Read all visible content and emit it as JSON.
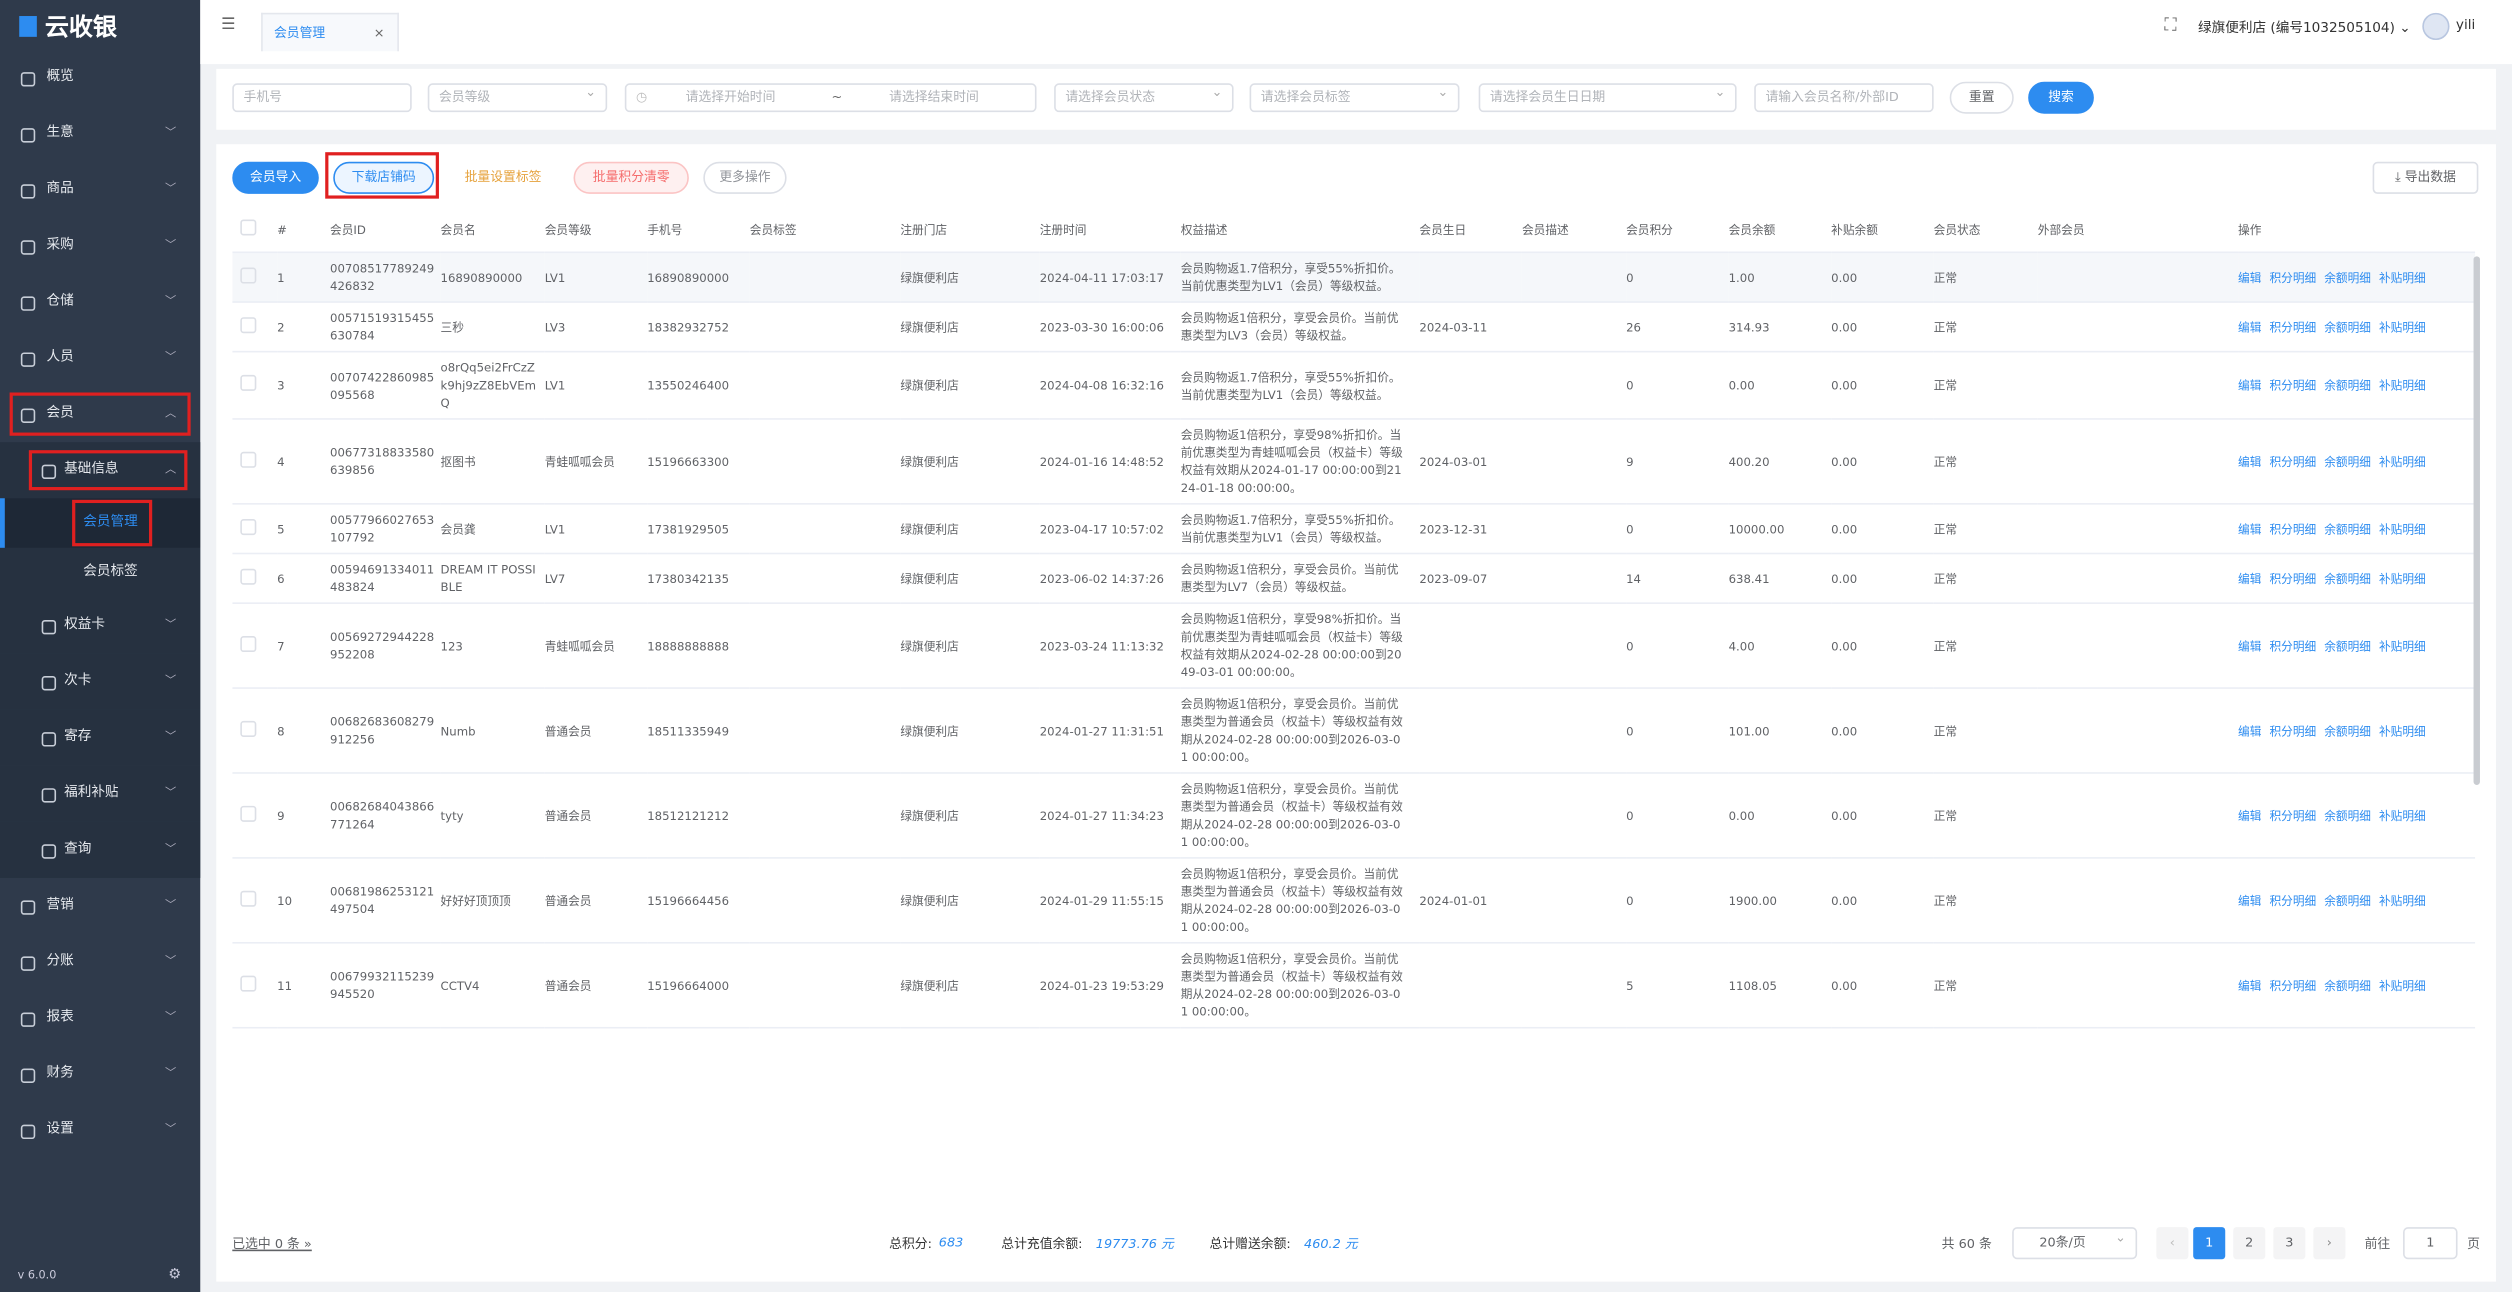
{
  "header": {
    "logo": "云收银",
    "tab": "会员管理",
    "store": "绿旗便利店 (编号1032505104)",
    "user": "yili"
  },
  "sidebar": {
    "items": [
      {
        "label": "概览"
      },
      {
        "label": "生意",
        "expanded": false
      },
      {
        "label": "商品",
        "expanded": false
      },
      {
        "label": "采购",
        "expanded": false
      },
      {
        "label": "仓储",
        "expanded": false
      },
      {
        "label": "人员",
        "expanded": false
      },
      {
        "label": "会员",
        "expanded": true,
        "highlighted": true,
        "children": [
          {
            "label": "基础信息",
            "expanded": true,
            "highlighted": true,
            "children": [
              {
                "label": "会员管理",
                "active": true,
                "highlighted": true
              },
              {
                "label": "会员标签"
              }
            ]
          },
          {
            "label": "权益卡",
            "expanded": false
          },
          {
            "label": "次卡",
            "expanded": false
          },
          {
            "label": "寄存",
            "expanded": false
          },
          {
            "label": "福利补贴",
            "expanded": false
          },
          {
            "label": "查询",
            "expanded": false
          }
        ]
      },
      {
        "label": "营销",
        "expanded": false
      },
      {
        "label": "分账",
        "expanded": false
      },
      {
        "label": "报表",
        "expanded": false
      },
      {
        "label": "财务",
        "expanded": false
      },
      {
        "label": "设置",
        "expanded": false
      }
    ],
    "version": "v 6.0.0"
  },
  "filters": {
    "phone": "手机号",
    "level": "会员等级",
    "start": "请选择开始时间",
    "sep": "~",
    "end": "请选择结束时间",
    "status": "请选择会员状态",
    "tag": "请选择会员标签",
    "birthday": "请选择会员生日日期",
    "name": "请输入会员名称/外部ID",
    "reset": "重置",
    "search": "搜索"
  },
  "toolbar": {
    "import": "会员导入",
    "download": "下载店铺码",
    "set_tag": "批量设置标签",
    "clear_points": "批量积分清零",
    "more": "更多操作",
    "export": "导出数据"
  },
  "table": {
    "columns": [
      "#",
      "会员ID",
      "会员名",
      "会员等级",
      "手机号",
      "会员标签",
      "注册门店",
      "注册时间",
      "权益描述",
      "会员生日",
      "会员描述",
      "会员积分",
      "会员余额",
      "补贴余额",
      "会员状态",
      "外部会员",
      "操作"
    ],
    "actions": [
      "编辑",
      "积分明细",
      "余额明细",
      "补贴明细"
    ],
    "rows": [
      [
        "1",
        "00708517789249426832",
        "16890890000",
        "LV1",
        "16890890000",
        null,
        "绿旗便利店",
        "2024-04-11 17:03:17",
        "会员购物返1.7倍积分，享受55%折扣价。当前优惠类型为LV1（会员）等级权益。",
        null,
        null,
        "0",
        "1.00",
        "0.00",
        "正常",
        null
      ],
      [
        "2",
        "00571519315455630784",
        "三秒",
        "LV3",
        "18382932752",
        null,
        "绿旗便利店",
        "2023-03-30 16:00:06",
        "会员购物返1倍积分，享受会员价。当前优惠类型为LV3（会员）等级权益。",
        "2024-03-11",
        null,
        "26",
        "314.93",
        "0.00",
        "正常",
        null
      ],
      [
        "3",
        "00707422860985095568",
        "o8rQq5ei2FrCzZk9hj9zZ8EbVEmQ",
        "LV1",
        "13550246400",
        null,
        "绿旗便利店",
        "2024-04-08 16:32:16",
        "会员购物返1.7倍积分，享受55%折扣价。当前优惠类型为LV1（会员）等级权益。",
        null,
        null,
        "0",
        "0.00",
        "0.00",
        "正常",
        null
      ],
      [
        "4",
        "00677318833580639856",
        "抠图书",
        "青蛙呱呱会员",
        "15196663300",
        null,
        "绿旗便利店",
        "2024-01-16 14:48:52",
        "会员购物返1倍积分，享受98%折扣价。当前优惠类型为青蛙呱呱会员（权益卡）等级权益有效期从2024-01-17 00:00:00到2124-01-18 00:00:00。",
        "2024-03-01",
        null,
        "9",
        "400.20",
        "0.00",
        "正常",
        null
      ],
      [
        "5",
        "00577966027653107792",
        "会员龚",
        "LV1",
        "17381929505",
        null,
        "绿旗便利店",
        "2023-04-17 10:57:02",
        "会员购物返1.7倍积分，享受55%折扣价。当前优惠类型为LV1（会员）等级权益。",
        "2023-12-31",
        null,
        "0",
        "10000.00",
        "0.00",
        "正常",
        null
      ],
      [
        "6",
        "00594691334011483824",
        "DREAM IT POSSIBLE",
        "LV7",
        "17380342135",
        null,
        "绿旗便利店",
        "2023-06-02 14:37:26",
        "会员购物返1倍积分，享受会员价。当前优惠类型为LV7（会员）等级权益。",
        "2023-09-07",
        null,
        "14",
        "638.41",
        "0.00",
        "正常",
        null
      ],
      [
        "7",
        "00569272944228952208",
        "123",
        "青蛙呱呱会员",
        "18888888888",
        null,
        "绿旗便利店",
        "2023-03-24 11:13:32",
        "会员购物返1倍积分，享受98%折扣价。当前优惠类型为青蛙呱呱会员（权益卡）等级权益有效期从2024-02-28 00:00:00到2049-03-01 00:00:00。",
        null,
        null,
        "0",
        "4.00",
        "0.00",
        "正常",
        null
      ],
      [
        "8",
        "00682683608279912256",
        "Numb",
        "普通会员",
        "18511335949",
        null,
        "绿旗便利店",
        "2024-01-27 11:31:51",
        "会员购物返1倍积分，享受会员价。当前优惠类型为普通会员（权益卡）等级权益有效期从2024-02-28 00:00:00到2026-03-01 00:00:00。",
        null,
        null,
        "0",
        "101.00",
        "0.00",
        "正常",
        null
      ],
      [
        "9",
        "00682684043866771264",
        "tyty",
        "普通会员",
        "18512121212",
        null,
        "绿旗便利店",
        "2024-01-27 11:34:23",
        "会员购物返1倍积分，享受会员价。当前优惠类型为普通会员（权益卡）等级权益有效期从2024-02-28 00:00:00到2026-03-01 00:00:00。",
        null,
        null,
        "0",
        "0.00",
        "0.00",
        "正常",
        null
      ],
      [
        "10",
        "00681986253121497504",
        "好好好顶顶顶",
        "普通会员",
        "15196664456",
        null,
        "绿旗便利店",
        "2024-01-29 11:55:15",
        "会员购物返1倍积分，享受会员价。当前优惠类型为普通会员（权益卡）等级权益有效期从2024-02-28 00:00:00到2026-03-01 00:00:00。",
        "2024-01-01",
        null,
        "0",
        "1900.00",
        "0.00",
        "正常",
        null
      ],
      [
        "11",
        "00679932115239945520",
        "CCTV4",
        "普通会员",
        "15196664000",
        null,
        "绿旗便利店",
        "2024-01-23 19:53:29",
        "会员购物返1倍积分，享受会员价。当前优惠类型为普通会员（权益卡）等级权益有效期从2024-02-28 00:00:00到2026-03-01 00:00:00。",
        null,
        null,
        "5",
        "1108.05",
        "0.00",
        "正常",
        null
      ]
    ]
  },
  "footer": {
    "selected": "已选中 0 条 »",
    "points_label": "总积分:",
    "points": "683",
    "recharge_label": "总计充值余额:",
    "recharge": "19773.76 元",
    "gift_label": "总计赠送余额:",
    "gift": "460.2 元",
    "total": "共 60 条",
    "page_size": "20条/页",
    "pages": [
      "1",
      "2",
      "3"
    ],
    "goto": "前往",
    "goto_value": "1",
    "page_unit": "页"
  }
}
